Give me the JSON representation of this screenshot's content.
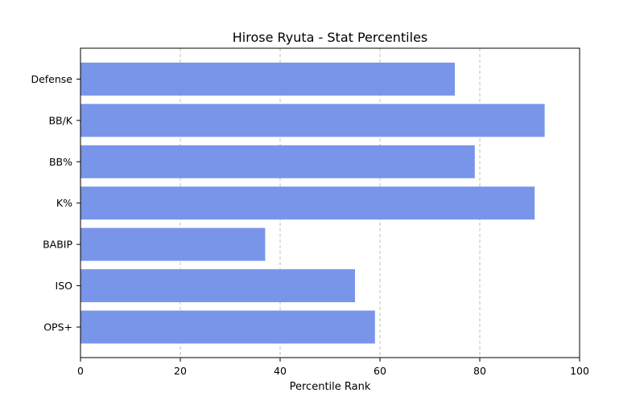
{
  "chart_data": {
    "type": "bar",
    "orientation": "horizontal",
    "title": "Hirose Ryuta - Stat Percentiles",
    "xlabel": "Percentile Rank",
    "ylabel": "",
    "xlim": [
      0,
      100
    ],
    "xticks": [
      "0",
      "20",
      "40",
      "60",
      "80",
      "100"
    ],
    "grid": "x-dashed",
    "bar_color": "#7895ea",
    "categories": [
      "OPS+",
      "ISO",
      "BABIP",
      "K%",
      "BB%",
      "BB/K",
      "Defense"
    ],
    "values": [
      59,
      55,
      37,
      91,
      79,
      93,
      75
    ]
  }
}
